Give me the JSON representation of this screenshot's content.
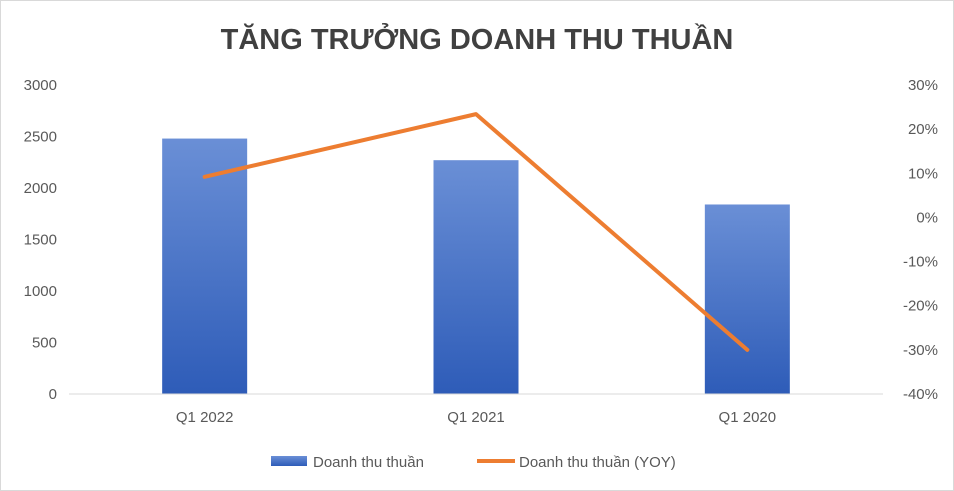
{
  "chart_data": {
    "type": "bar",
    "title": "TĂNG TRƯỞNG DOANH THU THUẦN",
    "categories": [
      "Q1 2022",
      "Q1 2021",
      "Q1 2020"
    ],
    "series": [
      {
        "name": "Doanh thu thuần",
        "type": "bar",
        "axis": "left",
        "values": [
          2480,
          2270,
          1840
        ]
      },
      {
        "name": "Doanh thu thuần (YOY)",
        "type": "line",
        "axis": "right",
        "values": [
          9.2,
          23.4,
          -30.0
        ]
      }
    ],
    "y_left": {
      "ylim": [
        0,
        3000
      ],
      "ticks": [
        "0",
        "500",
        "1000",
        "1500",
        "2000",
        "2500",
        "3000"
      ]
    },
    "y_right": {
      "ylim": [
        -40,
        30
      ],
      "unit": "%",
      "ticks": [
        "-40%",
        "-30%",
        "-20%",
        "-10%",
        "0%",
        "10%",
        "20%",
        "30%"
      ]
    },
    "grid": false,
    "legend_position": "bottom",
    "colors": {
      "bar_top": "#6a8fd6",
      "bar_bottom": "#2e5cb8",
      "line": "#ed7d31",
      "axis": "#d9d9d9",
      "text": "#595959",
      "title": "#404040"
    }
  }
}
